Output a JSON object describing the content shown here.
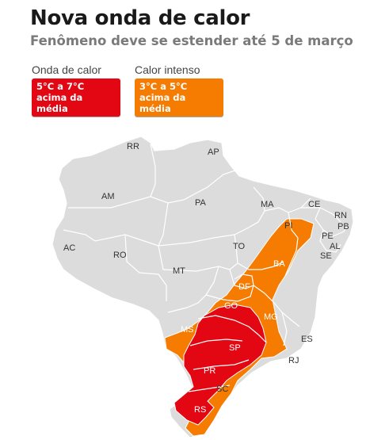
{
  "header": {
    "title": "Nova onda de calor",
    "subtitle": "Fenômeno deve se estender até 5 de março"
  },
  "legend": [
    {
      "label": "Onda de calor",
      "range": "5°C a 7°C",
      "desc": "acima da média",
      "color": "#e30613"
    },
    {
      "label": "Calor intenso",
      "range": "3°C a 5°C",
      "desc": "acima da média",
      "color": "#f57c00"
    }
  ],
  "map": {
    "base_color": "#dcdcdc",
    "states": {
      "RR": "RR",
      "AP": "AP",
      "AM": "AM",
      "PA": "PA",
      "MA": "MA",
      "CE": "CE",
      "RN": "RN",
      "PB": "PB",
      "PE": "PE",
      "AL": "AL",
      "SE": "SE",
      "PI": "PI",
      "AC": "AC",
      "RO": "RO",
      "TO": "TO",
      "BA": "BA",
      "MT": "MT",
      "DF": "DF",
      "GO": "GO",
      "MS": "MS",
      "MG": "MG",
      "ES": "ES",
      "SP": "SP",
      "RJ": "RJ",
      "PR": "PR",
      "SC": "SC",
      "RS": "RS"
    }
  }
}
